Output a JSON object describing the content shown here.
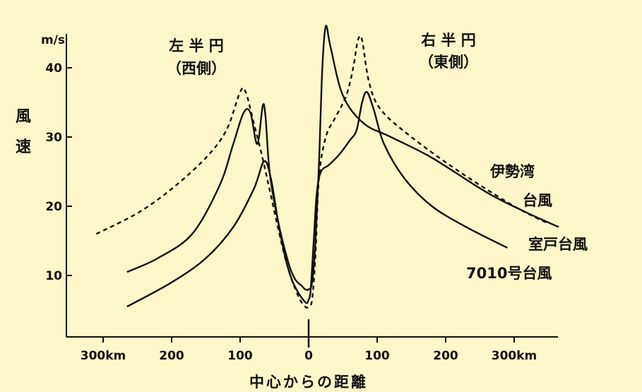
{
  "chart_data": {
    "type": "line",
    "xlabel": "中心からの距離",
    "ylabel_line1": "風",
    "ylabel_line2": "速",
    "yunit": "m/s",
    "xlim": [
      -370,
      400
    ],
    "ylim": [
      0,
      48
    ],
    "xticks": [
      {
        "x": -300,
        "label": "300km"
      },
      {
        "x": -200,
        "label": "200"
      },
      {
        "x": -100,
        "label": "100"
      },
      {
        "x": 0,
        "label": "0"
      },
      {
        "x": 100,
        "label": "100"
      },
      {
        "x": 200,
        "label": "200"
      },
      {
        "x": 300,
        "label": "300km"
      }
    ],
    "yticks": [
      {
        "y": 10,
        "label": "10"
      },
      {
        "y": 20,
        "label": "20"
      },
      {
        "y": 30,
        "label": "30"
      },
      {
        "y": 40,
        "label": "40"
      }
    ],
    "grid": false,
    "annotations": {
      "left_half": "左 半 円",
      "left_side": "（西側）",
      "right_half": "右 半 円",
      "right_side": "（東側）"
    },
    "series": [
      {
        "name": "伊勢湾台風",
        "label_line1": "伊勢湾",
        "label_line2": "台風",
        "style": "dashed",
        "points": [
          [
            -310,
            16
          ],
          [
            -250,
            19
          ],
          [
            -200,
            22.5
          ],
          [
            -150,
            27
          ],
          [
            -120,
            31
          ],
          [
            -100,
            36.5
          ],
          [
            -92,
            36.5
          ],
          [
            -80,
            32
          ],
          [
            -65,
            26
          ],
          [
            -45,
            17
          ],
          [
            -30,
            11
          ],
          [
            -15,
            7
          ],
          [
            -5,
            5.5
          ],
          [
            0,
            5.5
          ],
          [
            5,
            6.5
          ],
          [
            10,
            13
          ],
          [
            15,
            24
          ],
          [
            25,
            30
          ],
          [
            40,
            33
          ],
          [
            55,
            36
          ],
          [
            65,
            40
          ],
          [
            72,
            44
          ],
          [
            78,
            44
          ],
          [
            88,
            38
          ],
          [
            105,
            34
          ],
          [
            150,
            30
          ],
          [
            220,
            25
          ],
          [
            300,
            20
          ],
          [
            350,
            17.5
          ]
        ]
      },
      {
        "name": "室戸台風",
        "label_line1": "室戸台風",
        "style": "solid",
        "points": [
          [
            -265,
            10.5
          ],
          [
            -220,
            12.5
          ],
          [
            -170,
            16
          ],
          [
            -130,
            23
          ],
          [
            -110,
            29
          ],
          [
            -95,
            33.5
          ],
          [
            -85,
            33.5
          ],
          [
            -75,
            29
          ],
          [
            -67,
            34.5
          ],
          [
            -63,
            33
          ],
          [
            -57,
            25
          ],
          [
            -45,
            18
          ],
          [
            -30,
            12
          ],
          [
            -20,
            9.5
          ],
          [
            -10,
            8.5
          ],
          [
            -5,
            8
          ],
          [
            0,
            8
          ],
          [
            5,
            9
          ],
          [
            10,
            15
          ],
          [
            15,
            26
          ],
          [
            20,
            40
          ],
          [
            25,
            46
          ],
          [
            32,
            43
          ],
          [
            50,
            36
          ],
          [
            80,
            32
          ],
          [
            120,
            30
          ],
          [
            180,
            27
          ],
          [
            260,
            22
          ],
          [
            320,
            19
          ],
          [
            365,
            17
          ]
        ]
      },
      {
        "name": "7010号台風",
        "label_line1": "7010号台風",
        "style": "solid",
        "points": [
          [
            -265,
            5.5
          ],
          [
            -200,
            9
          ],
          [
            -150,
            12.5
          ],
          [
            -110,
            17
          ],
          [
            -80,
            22.5
          ],
          [
            -65,
            26.5
          ],
          [
            -55,
            24
          ],
          [
            -45,
            18
          ],
          [
            -35,
            13
          ],
          [
            -25,
            9.5
          ],
          [
            -15,
            7.5
          ],
          [
            -8,
            6.5
          ],
          [
            -3,
            6
          ],
          [
            0,
            6.5
          ],
          [
            3,
            8
          ],
          [
            8,
            16
          ],
          [
            12,
            22
          ],
          [
            18,
            25
          ],
          [
            30,
            26
          ],
          [
            45,
            27.5
          ],
          [
            60,
            29.5
          ],
          [
            70,
            31
          ],
          [
            78,
            35
          ],
          [
            85,
            36.5
          ],
          [
            95,
            34
          ],
          [
            110,
            29
          ],
          [
            140,
            24
          ],
          [
            180,
            20
          ],
          [
            230,
            17
          ],
          [
            290,
            14
          ]
        ]
      }
    ]
  }
}
